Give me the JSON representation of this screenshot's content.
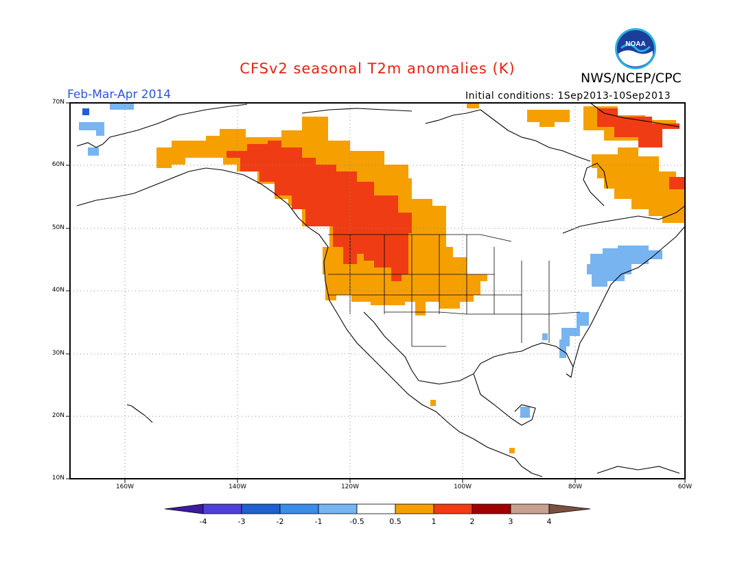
{
  "header": {
    "title": "CFSv2 seasonal T2m anomalies (K)",
    "organization": "NWS/NCEP/CPC",
    "period": "Feb-Mar-Apr 2014",
    "initial_conditions": "Initial conditions: 1Sep2013-10Sep2013",
    "logo_text": "NOAA"
  },
  "map": {
    "lat_labels": [
      "70N",
      "60N",
      "50N",
      "40N",
      "30N",
      "20N",
      "10N"
    ],
    "lon_labels": [
      "160W",
      "140W",
      "120W",
      "100W",
      "80W",
      "60W"
    ]
  },
  "colorbar": {
    "tick_labels": [
      "-4",
      "-3",
      "-2",
      "-1",
      "-0.5",
      "0.5",
      "1",
      "2",
      "3",
      "4"
    ],
    "colors": [
      "#3c1ba0",
      "#5040d8",
      "#2060d0",
      "#3c8ce8",
      "#78b4f0",
      "#ffffff",
      "#f5a000",
      "#f03c14",
      "#a00000",
      "#c8a090",
      "#7a5040"
    ]
  }
}
